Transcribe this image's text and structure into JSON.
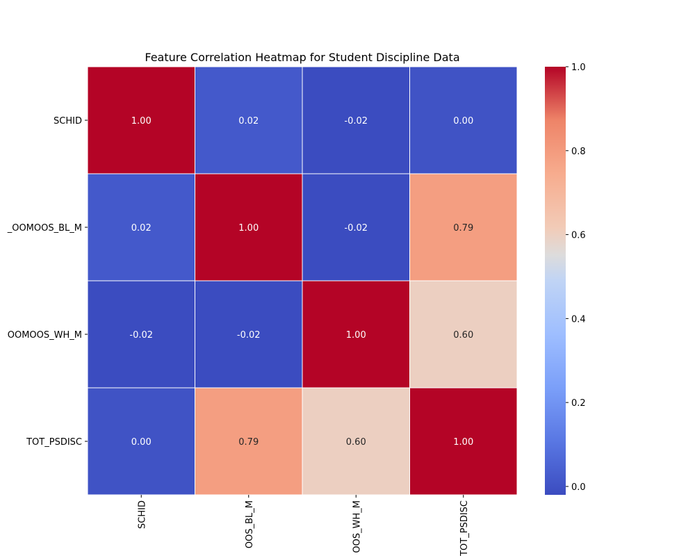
{
  "chart_data": {
    "type": "heatmap",
    "title": "Feature Correlation Heatmap for Student Discipline Data",
    "row_labels": [
      "SCHID",
      "_OOMOOS_BL_M",
      "OOMOOS_WH_M",
      "TOT_PSDISC"
    ],
    "col_labels": [
      "SCHID",
      "OOS_BL_M",
      "OOS_WH_M",
      "TOT_PSDISC"
    ],
    "values": [
      [
        1.0,
        0.02,
        -0.02,
        0.0
      ],
      [
        0.02,
        1.0,
        -0.02,
        0.79
      ],
      [
        -0.02,
        -0.02,
        1.0,
        0.6
      ],
      [
        0.0,
        0.79,
        0.6,
        1.0
      ]
    ],
    "cell_labels": [
      [
        "1.00",
        "0.02",
        "-0.02",
        "0.00"
      ],
      [
        "0.02",
        "1.00",
        "-0.02",
        "0.79"
      ],
      [
        "-0.02",
        "-0.02",
        "1.00",
        "0.60"
      ],
      [
        "0.00",
        "0.79",
        "0.60",
        "1.00"
      ]
    ],
    "colormap": "coolwarm",
    "color_range": [
      -0.02,
      1.0
    ],
    "colorbar_ticks": [
      "0.0",
      "0.2",
      "0.4",
      "0.6",
      "0.8",
      "1.0"
    ],
    "colorbar_tick_values": [
      0.0,
      0.2,
      0.4,
      0.6,
      0.8,
      1.0
    ]
  }
}
